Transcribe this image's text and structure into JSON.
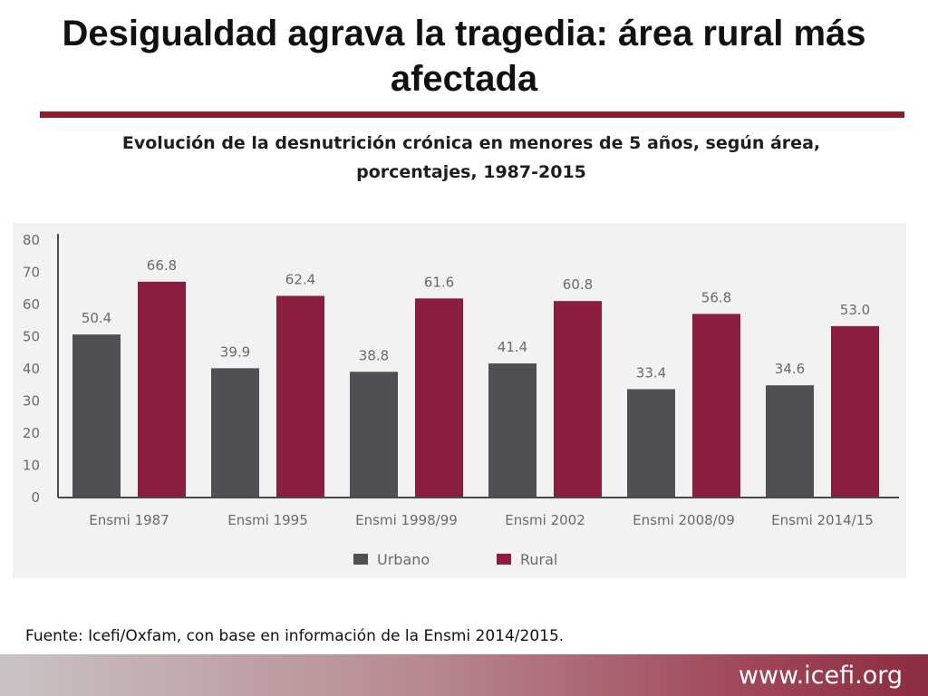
{
  "slide": {
    "title": "Desigualdad agrava la tragedia: área rural más afectada",
    "source": "Fuente: Icefi/Oxfam, con base en información de la Ensmi 2014/2015.",
    "website": "www.icefi.org"
  },
  "colors": {
    "urbano": "#4f4f54",
    "rural": "#8b1d3f",
    "accent_rule": "#8c1c2c",
    "panel": "#f2f2f2"
  },
  "chart_data": {
    "type": "bar",
    "title": "Evolución de la desnutrición crónica en menores de 5 años, según área, porcentajes, 1987-2015",
    "categories": [
      "Ensmi 1987",
      "Ensmi 1995",
      "Ensmi 1998/99",
      "Ensmi 2002",
      "Ensmi  2008/09",
      "Ensmi 2014/15"
    ],
    "series": [
      {
        "name": "Urbano",
        "values": [
          50.4,
          39.9,
          38.8,
          41.4,
          33.4,
          34.6
        ],
        "labels": [
          "50.4",
          "39.9",
          "38.8",
          "41.4",
          "33.4",
          "34.6"
        ],
        "color": "#4f4f54"
      },
      {
        "name": "Rural",
        "values": [
          66.8,
          62.4,
          61.6,
          60.8,
          56.8,
          53.0
        ],
        "labels": [
          "66.8",
          "62.4",
          "61.6",
          "60.8",
          "56.8",
          "53.0"
        ],
        "color": "#8b1d3f"
      }
    ],
    "yticks": [
      0,
      10,
      20,
      30,
      40,
      50,
      60,
      70,
      80
    ],
    "ylim": [
      0,
      80
    ],
    "xlabel": "",
    "ylabel": "",
    "grid": false,
    "legend": "bottom"
  }
}
